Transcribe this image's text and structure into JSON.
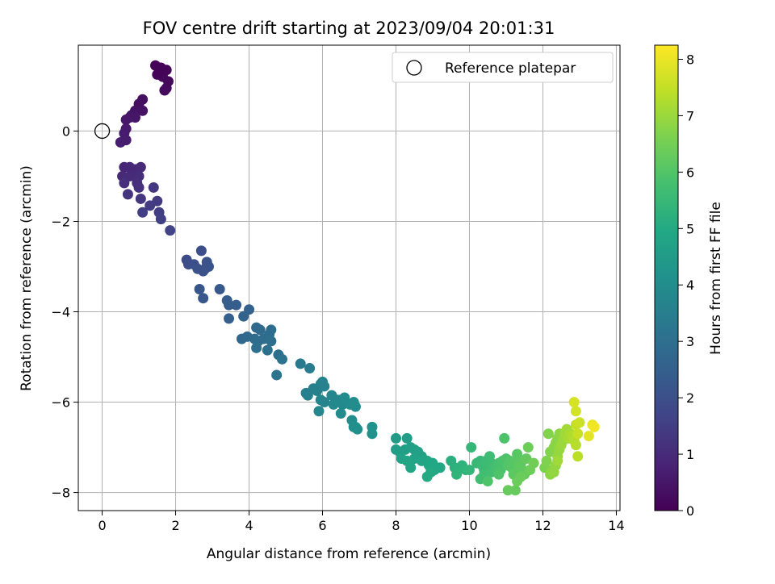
{
  "chart_data": {
    "type": "scatter",
    "title": "FOV centre drift starting at 2023/09/04 20:01:31",
    "xlabel": "Angular distance from reference (arcmin)",
    "ylabel": "Rotation from reference (arcmin)",
    "xlim": [
      -0.65,
      14.1
    ],
    "ylim": [
      -8.4,
      1.9
    ],
    "xticks": [
      0,
      2,
      4,
      6,
      8,
      10,
      12,
      14
    ],
    "yticks": [
      0,
      -2,
      -4,
      -6,
      -8
    ],
    "grid": true,
    "legend": {
      "placement": "top-right",
      "entries": [
        "Reference platepar"
      ]
    },
    "reference_point": {
      "x": 0,
      "y": 0
    },
    "colorbar": {
      "label": "Hours from first FF file",
      "min": 0,
      "max": 8.25,
      "ticks": [
        0,
        1,
        2,
        3,
        4,
        5,
        6,
        7,
        8
      ],
      "colormap": "viridis"
    },
    "points": [
      {
        "x": 1.45,
        "y": 1.45,
        "c": 0.05
      },
      {
        "x": 1.6,
        "y": 1.4,
        "c": 0.08
      },
      {
        "x": 1.75,
        "y": 1.35,
        "c": 0.1
      },
      {
        "x": 1.5,
        "y": 1.25,
        "c": 0.12
      },
      {
        "x": 1.65,
        "y": 1.2,
        "c": 0.15
      },
      {
        "x": 1.8,
        "y": 1.1,
        "c": 0.18
      },
      {
        "x": 1.75,
        "y": 0.95,
        "c": 0.2
      },
      {
        "x": 1.7,
        "y": 0.9,
        "c": 0.22
      },
      {
        "x": 1.55,
        "y": 1.3,
        "c": 0.1
      },
      {
        "x": 1.1,
        "y": 0.7,
        "c": 0.3
      },
      {
        "x": 1.0,
        "y": 0.6,
        "c": 0.35
      },
      {
        "x": 0.9,
        "y": 0.45,
        "c": 0.4
      },
      {
        "x": 1.1,
        "y": 0.45,
        "c": 0.4
      },
      {
        "x": 0.8,
        "y": 0.35,
        "c": 0.45
      },
      {
        "x": 0.75,
        "y": 0.3,
        "c": 0.5
      },
      {
        "x": 0.9,
        "y": 0.3,
        "c": 0.5
      },
      {
        "x": 0.65,
        "y": 0.25,
        "c": 0.55
      },
      {
        "x": 0.65,
        "y": 0.05,
        "c": 0.6
      },
      {
        "x": 0.6,
        "y": -0.05,
        "c": 0.62
      },
      {
        "x": 0.65,
        "y": -0.2,
        "c": 0.65
      },
      {
        "x": 0.5,
        "y": -0.25,
        "c": 0.7
      },
      {
        "x": 0.6,
        "y": -0.8,
        "c": 0.85
      },
      {
        "x": 0.75,
        "y": -0.8,
        "c": 0.9
      },
      {
        "x": 0.9,
        "y": -0.85,
        "c": 0.9
      },
      {
        "x": 1.05,
        "y": -0.8,
        "c": 0.95
      },
      {
        "x": 0.55,
        "y": -1.0,
        "c": 1.0
      },
      {
        "x": 0.75,
        "y": -1.0,
        "c": 1.0
      },
      {
        "x": 1.0,
        "y": -1.0,
        "c": 1.05
      },
      {
        "x": 0.6,
        "y": -1.15,
        "c": 1.1
      },
      {
        "x": 0.95,
        "y": -1.15,
        "c": 1.1
      },
      {
        "x": 1.0,
        "y": -1.25,
        "c": 1.15
      },
      {
        "x": 0.7,
        "y": -1.4,
        "c": 1.2
      },
      {
        "x": 1.05,
        "y": -1.5,
        "c": 1.3
      },
      {
        "x": 1.4,
        "y": -1.25,
        "c": 1.3
      },
      {
        "x": 1.5,
        "y": -1.55,
        "c": 1.4
      },
      {
        "x": 1.3,
        "y": -1.65,
        "c": 1.45
      },
      {
        "x": 1.55,
        "y": -1.8,
        "c": 1.5
      },
      {
        "x": 1.1,
        "y": -1.8,
        "c": 1.5
      },
      {
        "x": 1.6,
        "y": -1.95,
        "c": 1.55
      },
      {
        "x": 1.85,
        "y": -2.2,
        "c": 1.65
      },
      {
        "x": 2.3,
        "y": -2.85,
        "c": 1.9
      },
      {
        "x": 2.35,
        "y": -2.95,
        "c": 1.95
      },
      {
        "x": 2.5,
        "y": -2.95,
        "c": 2.0
      },
      {
        "x": 2.7,
        "y": -2.65,
        "c": 2.0
      },
      {
        "x": 2.6,
        "y": -3.05,
        "c": 2.05
      },
      {
        "x": 2.75,
        "y": -3.1,
        "c": 2.05
      },
      {
        "x": 2.85,
        "y": -2.9,
        "c": 2.1
      },
      {
        "x": 2.9,
        "y": -3.0,
        "c": 2.1
      },
      {
        "x": 2.8,
        "y": -3.05,
        "c": 2.1
      },
      {
        "x": 2.65,
        "y": -3.5,
        "c": 2.2
      },
      {
        "x": 2.75,
        "y": -3.7,
        "c": 2.25
      },
      {
        "x": 3.2,
        "y": -3.5,
        "c": 2.3
      },
      {
        "x": 3.4,
        "y": -3.75,
        "c": 2.4
      },
      {
        "x": 3.45,
        "y": -3.85,
        "c": 2.4
      },
      {
        "x": 3.65,
        "y": -3.85,
        "c": 2.45
      },
      {
        "x": 3.45,
        "y": -4.15,
        "c": 2.5
      },
      {
        "x": 4.0,
        "y": -3.95,
        "c": 2.6
      },
      {
        "x": 3.85,
        "y": -4.1,
        "c": 2.6
      },
      {
        "x": 3.8,
        "y": -4.6,
        "c": 2.75
      },
      {
        "x": 3.95,
        "y": -4.55,
        "c": 2.8
      },
      {
        "x": 4.2,
        "y": -4.35,
        "c": 2.8
      },
      {
        "x": 4.3,
        "y": -4.4,
        "c": 2.85
      },
      {
        "x": 4.15,
        "y": -4.6,
        "c": 2.85
      },
      {
        "x": 4.25,
        "y": -4.65,
        "c": 2.9
      },
      {
        "x": 4.4,
        "y": -4.6,
        "c": 2.9
      },
      {
        "x": 4.55,
        "y": -4.5,
        "c": 2.95
      },
      {
        "x": 4.6,
        "y": -4.4,
        "c": 2.95
      },
      {
        "x": 4.6,
        "y": -4.65,
        "c": 3.0
      },
      {
        "x": 4.2,
        "y": -4.8,
        "c": 3.0
      },
      {
        "x": 4.5,
        "y": -4.85,
        "c": 3.05
      },
      {
        "x": 4.8,
        "y": -4.95,
        "c": 3.05
      },
      {
        "x": 4.9,
        "y": -5.05,
        "c": 3.1
      },
      {
        "x": 4.75,
        "y": -5.4,
        "c": 3.15
      },
      {
        "x": 5.4,
        "y": -5.15,
        "c": 3.35
      },
      {
        "x": 5.65,
        "y": -5.25,
        "c": 3.4
      },
      {
        "x": 5.55,
        "y": -5.8,
        "c": 3.5
      },
      {
        "x": 5.6,
        "y": -5.85,
        "c": 3.55
      },
      {
        "x": 5.75,
        "y": -5.7,
        "c": 3.55
      },
      {
        "x": 5.85,
        "y": -5.75,
        "c": 3.6
      },
      {
        "x": 5.95,
        "y": -5.6,
        "c": 3.6
      },
      {
        "x": 6.0,
        "y": -5.55,
        "c": 3.65
      },
      {
        "x": 6.05,
        "y": -5.65,
        "c": 3.65
      },
      {
        "x": 5.95,
        "y": -5.95,
        "c": 3.7
      },
      {
        "x": 6.05,
        "y": -6.0,
        "c": 3.7
      },
      {
        "x": 5.9,
        "y": -6.2,
        "c": 3.75
      },
      {
        "x": 6.25,
        "y": -5.85,
        "c": 3.75
      },
      {
        "x": 6.4,
        "y": -5.95,
        "c": 3.8
      },
      {
        "x": 6.5,
        "y": -5.95,
        "c": 3.8
      },
      {
        "x": 6.3,
        "y": -6.05,
        "c": 3.85
      },
      {
        "x": 6.55,
        "y": -6.05,
        "c": 3.85
      },
      {
        "x": 6.6,
        "y": -5.9,
        "c": 3.9
      },
      {
        "x": 6.5,
        "y": -6.25,
        "c": 3.9
      },
      {
        "x": 6.75,
        "y": -6.05,
        "c": 3.95
      },
      {
        "x": 6.85,
        "y": -6.0,
        "c": 3.95
      },
      {
        "x": 6.9,
        "y": -6.1,
        "c": 4.0
      },
      {
        "x": 6.8,
        "y": -6.4,
        "c": 4.0
      },
      {
        "x": 6.95,
        "y": -6.6,
        "c": 4.05
      },
      {
        "x": 6.85,
        "y": -6.55,
        "c": 4.05
      },
      {
        "x": 6.9,
        "y": -6.55,
        "c": 4.1
      },
      {
        "x": 7.35,
        "y": -6.55,
        "c": 4.15
      },
      {
        "x": 7.35,
        "y": -6.7,
        "c": 4.2
      },
      {
        "x": 8.0,
        "y": -6.8,
        "c": 4.5
      },
      {
        "x": 8.3,
        "y": -6.8,
        "c": 4.55
      },
      {
        "x": 8.0,
        "y": -7.05,
        "c": 4.55
      },
      {
        "x": 8.1,
        "y": -7.1,
        "c": 4.6
      },
      {
        "x": 8.25,
        "y": -7.05,
        "c": 4.6
      },
      {
        "x": 8.4,
        "y": -7.0,
        "c": 4.65
      },
      {
        "x": 8.5,
        "y": -7.05,
        "c": 4.65
      },
      {
        "x": 8.6,
        "y": -7.1,
        "c": 4.7
      },
      {
        "x": 8.7,
        "y": -7.2,
        "c": 4.7
      },
      {
        "x": 8.5,
        "y": -7.25,
        "c": 4.75
      },
      {
        "x": 8.15,
        "y": -7.25,
        "c": 4.75
      },
      {
        "x": 8.3,
        "y": -7.3,
        "c": 4.8
      },
      {
        "x": 8.7,
        "y": -7.3,
        "c": 4.8
      },
      {
        "x": 8.85,
        "y": -7.3,
        "c": 4.85
      },
      {
        "x": 8.4,
        "y": -7.45,
        "c": 4.85
      },
      {
        "x": 8.9,
        "y": -7.4,
        "c": 4.9
      },
      {
        "x": 9.0,
        "y": -7.35,
        "c": 4.9
      },
      {
        "x": 9.05,
        "y": -7.5,
        "c": 4.95
      },
      {
        "x": 9.2,
        "y": -7.45,
        "c": 4.95
      },
      {
        "x": 8.95,
        "y": -7.55,
        "c": 5.0
      },
      {
        "x": 8.85,
        "y": -7.65,
        "c": 5.0
      },
      {
        "x": 9.5,
        "y": -7.3,
        "c": 5.2
      },
      {
        "x": 9.6,
        "y": -7.45,
        "c": 5.25
      },
      {
        "x": 9.7,
        "y": -7.5,
        "c": 5.3
      },
      {
        "x": 9.8,
        "y": -7.4,
        "c": 5.3
      },
      {
        "x": 9.9,
        "y": -7.5,
        "c": 5.35
      },
      {
        "x": 9.65,
        "y": -7.6,
        "c": 5.35
      },
      {
        "x": 10.0,
        "y": -7.5,
        "c": 5.4
      },
      {
        "x": 10.05,
        "y": -7.0,
        "c": 5.45
      },
      {
        "x": 10.2,
        "y": -7.35,
        "c": 5.5
      },
      {
        "x": 10.3,
        "y": -7.3,
        "c": 5.5
      },
      {
        "x": 10.35,
        "y": -7.4,
        "c": 5.55
      },
      {
        "x": 10.4,
        "y": -7.5,
        "c": 5.55
      },
      {
        "x": 10.45,
        "y": -7.3,
        "c": 5.6
      },
      {
        "x": 10.5,
        "y": -7.45,
        "c": 5.6
      },
      {
        "x": 10.55,
        "y": -7.2,
        "c": 5.65
      },
      {
        "x": 10.6,
        "y": -7.35,
        "c": 5.65
      },
      {
        "x": 10.4,
        "y": -7.6,
        "c": 5.7
      },
      {
        "x": 10.3,
        "y": -7.7,
        "c": 5.7
      },
      {
        "x": 10.6,
        "y": -7.55,
        "c": 5.75
      },
      {
        "x": 10.7,
        "y": -7.4,
        "c": 5.75
      },
      {
        "x": 10.75,
        "y": -7.5,
        "c": 5.8
      },
      {
        "x": 10.8,
        "y": -7.35,
        "c": 5.8
      },
      {
        "x": 10.85,
        "y": -7.5,
        "c": 5.85
      },
      {
        "x": 10.9,
        "y": -7.3,
        "c": 5.85
      },
      {
        "x": 10.95,
        "y": -6.8,
        "c": 5.9
      },
      {
        "x": 11.0,
        "y": -7.25,
        "c": 5.9
      },
      {
        "x": 10.5,
        "y": -7.75,
        "c": 5.95
      },
      {
        "x": 10.8,
        "y": -7.6,
        "c": 5.95
      },
      {
        "x": 11.05,
        "y": -7.4,
        "c": 6.0
      },
      {
        "x": 11.1,
        "y": -7.3,
        "c": 6.0
      },
      {
        "x": 11.15,
        "y": -7.45,
        "c": 6.05
      },
      {
        "x": 11.2,
        "y": -7.5,
        "c": 6.05
      },
      {
        "x": 11.25,
        "y": -7.3,
        "c": 6.1
      },
      {
        "x": 11.3,
        "y": -7.15,
        "c": 6.1
      },
      {
        "x": 11.2,
        "y": -7.6,
        "c": 6.15
      },
      {
        "x": 11.35,
        "y": -7.45,
        "c": 6.15
      },
      {
        "x": 11.4,
        "y": -7.35,
        "c": 6.2
      },
      {
        "x": 11.45,
        "y": -7.5,
        "c": 6.2
      },
      {
        "x": 11.5,
        "y": -7.6,
        "c": 6.25
      },
      {
        "x": 11.55,
        "y": -7.25,
        "c": 6.25
      },
      {
        "x": 11.05,
        "y": -7.95,
        "c": 6.3
      },
      {
        "x": 11.25,
        "y": -7.95,
        "c": 6.3
      },
      {
        "x": 11.3,
        "y": -7.75,
        "c": 6.35
      },
      {
        "x": 11.4,
        "y": -7.65,
        "c": 6.35
      },
      {
        "x": 11.6,
        "y": -7.0,
        "c": 6.4
      },
      {
        "x": 11.65,
        "y": -7.5,
        "c": 6.4
      },
      {
        "x": 11.75,
        "y": -7.35,
        "c": 6.45
      },
      {
        "x": 12.05,
        "y": -7.45,
        "c": 6.6
      },
      {
        "x": 12.1,
        "y": -7.3,
        "c": 6.65
      },
      {
        "x": 12.15,
        "y": -6.7,
        "c": 6.7
      },
      {
        "x": 12.2,
        "y": -7.1,
        "c": 6.7
      },
      {
        "x": 12.25,
        "y": -7.5,
        "c": 6.75
      },
      {
        "x": 12.3,
        "y": -7.0,
        "c": 6.75
      },
      {
        "x": 12.35,
        "y": -6.9,
        "c": 6.8
      },
      {
        "x": 12.4,
        "y": -6.8,
        "c": 6.8
      },
      {
        "x": 12.45,
        "y": -6.7,
        "c": 6.85
      },
      {
        "x": 12.2,
        "y": -7.6,
        "c": 6.85
      },
      {
        "x": 12.3,
        "y": -7.55,
        "c": 6.9
      },
      {
        "x": 12.35,
        "y": -7.4,
        "c": 6.9
      },
      {
        "x": 12.4,
        "y": -7.2,
        "c": 6.95
      },
      {
        "x": 12.45,
        "y": -7.05,
        "c": 6.95
      },
      {
        "x": 12.5,
        "y": -6.95,
        "c": 7.0
      },
      {
        "x": 12.55,
        "y": -6.85,
        "c": 7.0
      },
      {
        "x": 12.4,
        "y": -7.3,
        "c": 7.05
      },
      {
        "x": 12.6,
        "y": -6.7,
        "c": 7.05
      },
      {
        "x": 12.65,
        "y": -6.6,
        "c": 7.1
      },
      {
        "x": 12.7,
        "y": -6.8,
        "c": 7.15
      },
      {
        "x": 12.75,
        "y": -6.7,
        "c": 7.2
      },
      {
        "x": 12.8,
        "y": -6.75,
        "c": 7.25
      },
      {
        "x": 12.85,
        "y": -6.85,
        "c": 7.3
      },
      {
        "x": 12.9,
        "y": -6.95,
        "c": 7.35
      },
      {
        "x": 12.95,
        "y": -7.2,
        "c": 7.4
      },
      {
        "x": 12.9,
        "y": -6.5,
        "c": 7.5
      },
      {
        "x": 12.95,
        "y": -6.7,
        "c": 7.55
      },
      {
        "x": 13.0,
        "y": -6.45,
        "c": 7.6
      },
      {
        "x": 12.9,
        "y": -6.2,
        "c": 7.7
      },
      {
        "x": 12.85,
        "y": -6.0,
        "c": 7.75
      },
      {
        "x": 13.25,
        "y": -6.75,
        "c": 7.9
      },
      {
        "x": 13.35,
        "y": -6.5,
        "c": 8.0
      },
      {
        "x": 13.4,
        "y": -6.55,
        "c": 8.1
      }
    ]
  }
}
